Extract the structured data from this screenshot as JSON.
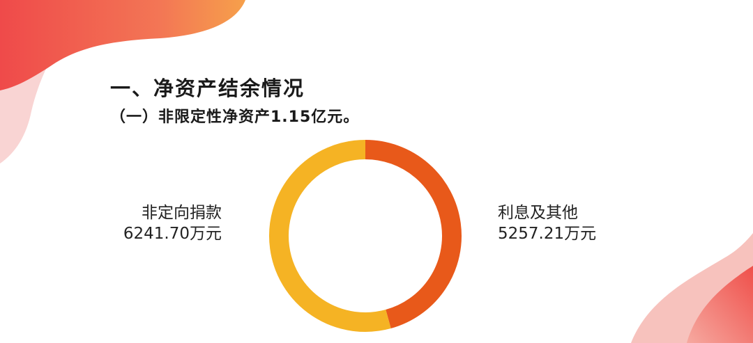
{
  "page": {
    "heading": "一、净资产结余情况",
    "subheading": "（一）非限定性净资产1.15亿元。"
  },
  "colors": {
    "accent_red": "#e8591a",
    "accent_yellow": "#f5b324",
    "deco_pink": "#f4a3a3",
    "deco_red": "#ef4a4a",
    "deco_orange": "#f6a04b"
  },
  "chart_data": {
    "type": "pie",
    "labels": [
      "非定向捐款",
      "利息及其他"
    ],
    "values": [
      6241.7,
      5257.21
    ],
    "value_labels": [
      "6241.70万元",
      "5257.21万元"
    ],
    "unit": "万元",
    "colors": [
      "#f5b324",
      "#e8591a"
    ]
  }
}
